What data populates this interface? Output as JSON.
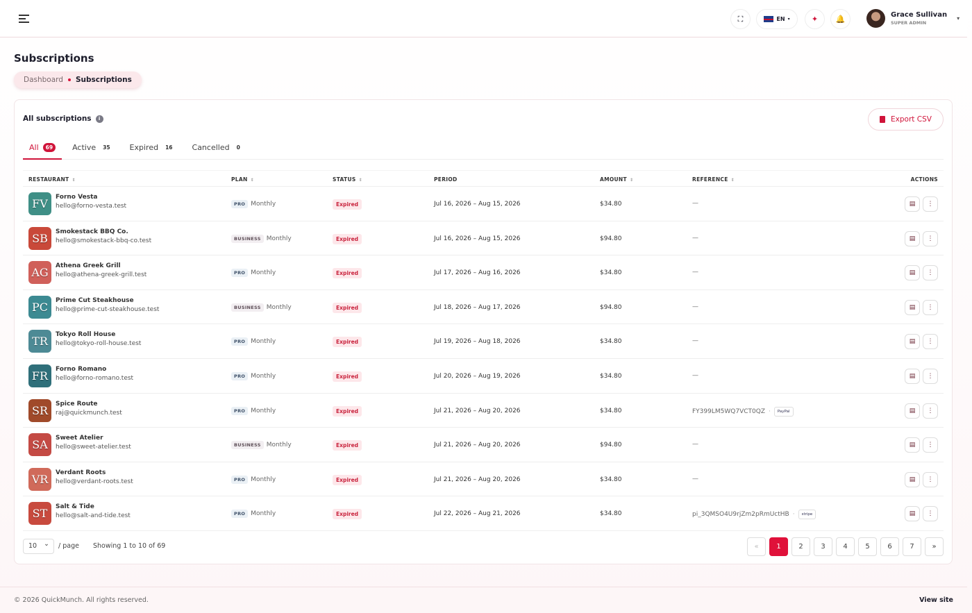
{
  "header": {
    "language": "EN",
    "user_name": "Grace Sullivan",
    "user_role": "SUPER ADMIN"
  },
  "page": {
    "title": "Subscriptions",
    "breadcrumb": [
      "Dashboard",
      "Subscriptions"
    ]
  },
  "card": {
    "title": "All subscriptions",
    "export": "Export CSV",
    "tabs": [
      {
        "label": "All",
        "count": 69
      },
      {
        "label": "Active",
        "count": 35
      },
      {
        "label": "Expired",
        "count": 16
      },
      {
        "label": "Cancelled",
        "count": 0
      }
    ],
    "columns": [
      "RESTAURANT",
      "PLAN",
      "STATUS",
      "PERIOD",
      "AMOUNT",
      "REFERENCE",
      "ACTIONS"
    ],
    "rows": [
      {
        "initials": "FV",
        "name": "Forno Vesta",
        "email": "hello@forno-vesta.test",
        "plan": "PRO",
        "cycle": "Monthly",
        "status": "Expired",
        "period": "Jul 16, 2026 – Aug 15, 2026",
        "amount": "$34.80",
        "reference": "—"
      },
      {
        "initials": "SB",
        "name": "Smokestack BBQ Co.",
        "email": "hello@smokestack-bbq-co.test",
        "plan": "BUSINESS",
        "cycle": "Monthly",
        "status": "Expired",
        "period": "Jul 16, 2026 – Aug 15, 2026",
        "amount": "$94.80",
        "reference": "—"
      },
      {
        "initials": "AG",
        "name": "Athena Greek Grill",
        "email": "hello@athena-greek-grill.test",
        "plan": "PRO",
        "cycle": "Monthly",
        "status": "Expired",
        "period": "Jul 17, 2026 – Aug 16, 2026",
        "amount": "$34.80",
        "reference": "—"
      },
      {
        "initials": "PC",
        "name": "Prime Cut Steakhouse",
        "email": "hello@prime-cut-steakhouse.test",
        "plan": "BUSINESS",
        "cycle": "Monthly",
        "status": "Expired",
        "period": "Jul 18, 2026 – Aug 17, 2026",
        "amount": "$94.80",
        "reference": "—"
      },
      {
        "initials": "TR",
        "name": "Tokyo Roll House",
        "email": "hello@tokyo-roll-house.test",
        "plan": "PRO",
        "cycle": "Monthly",
        "status": "Expired",
        "period": "Jul 19, 2026 – Aug 18, 2026",
        "amount": "$34.80",
        "reference": "—"
      },
      {
        "initials": "FR",
        "name": "Forno Romano",
        "email": "hello@forno-romano.test",
        "plan": "PRO",
        "cycle": "Monthly",
        "status": "Expired",
        "period": "Jul 20, 2026 – Aug 19, 2026",
        "amount": "$34.80",
        "reference": "—"
      },
      {
        "initials": "SR",
        "name": "Spice Route",
        "email": "raj@quickmunch.test",
        "plan": "PRO",
        "cycle": "Monthly",
        "status": "Expired",
        "period": "Jul 21, 2026 – Aug 20, 2026",
        "amount": "$34.80",
        "reference": "FY399LM5WQ7VCT0QZ",
        "provider": "PayPal"
      },
      {
        "initials": "SA",
        "name": "Sweet Atelier",
        "email": "hello@sweet-atelier.test",
        "plan": "BUSINESS",
        "cycle": "Monthly",
        "status": "Expired",
        "period": "Jul 21, 2026 – Aug 20, 2026",
        "amount": "$94.80",
        "reference": "—"
      },
      {
        "initials": "VR",
        "name": "Verdant Roots",
        "email": "hello@verdant-roots.test",
        "plan": "PRO",
        "cycle": "Monthly",
        "status": "Expired",
        "period": "Jul 21, 2026 – Aug 20, 2026",
        "amount": "$34.80",
        "reference": "—"
      },
      {
        "initials": "ST",
        "name": "Salt & Tide",
        "email": "hello@salt-and-tide.test",
        "plan": "PRO",
        "cycle": "Monthly",
        "status": "Expired",
        "period": "Jul 22, 2026 – Aug 21, 2026",
        "amount": "$34.80",
        "reference": "pi_3QMSO4U9rjZm2pRmUctHB",
        "provider": "stripe"
      }
    ],
    "pagination": {
      "per_page": 10,
      "per_page_label": "/ page",
      "summary": "Showing 1 to 10 of 69",
      "prev": "«",
      "pages": [
        1,
        2,
        3,
        4,
        5,
        6,
        7
      ],
      "next": "»"
    }
  },
  "footer": {
    "copyright": "© 2026 QuickMunch. All rights reserved.",
    "link": "View site"
  }
}
